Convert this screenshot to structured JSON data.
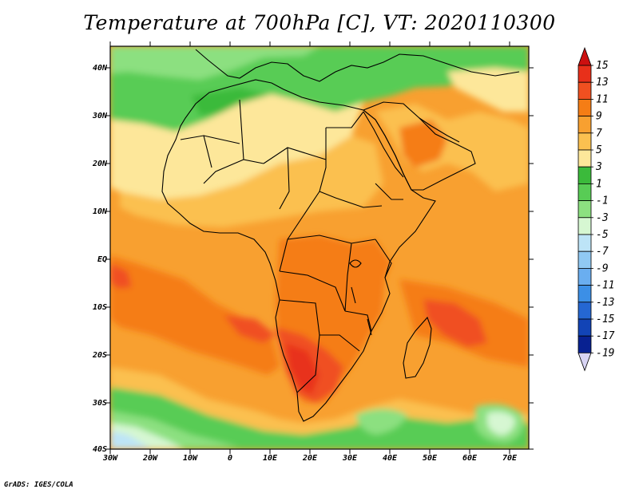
{
  "title": "Temperature at 700hPa [C], VT: 2020110300",
  "credit": "GrADS: IGES/COLA",
  "lat_labels": [
    "40N",
    "30N",
    "20N",
    "10N",
    "EQ",
    "10S",
    "20S",
    "30S",
    "40S"
  ],
  "lon_labels": [
    "30W",
    "20W",
    "10W",
    "0",
    "10E",
    "20E",
    "30E",
    "40E",
    "50E",
    "60E",
    "70E"
  ],
  "colorbar": {
    "labels": [
      "15",
      "13",
      "11",
      "9",
      "7",
      "5",
      "3",
      "1",
      "-1",
      "-3",
      "-5",
      "-7",
      "-9",
      "-11",
      "-13",
      "-15",
      "-17",
      "-19"
    ],
    "colors": [
      "#e8301a",
      "#f05020",
      "#f57d15",
      "#f8a030",
      "#fbc050",
      "#fde79a",
      "#3bba3b",
      "#58cc55",
      "#8ce080",
      "#d6f7d2",
      "#bde4f7",
      "#90c9f3",
      "#6aaef0",
      "#3c8fe6",
      "#2567d2",
      "#1244b6",
      "#082191"
    ],
    "top_arrow_color": "#cc1010",
    "bottom_arrow_color": "#d8d4f4"
  },
  "field_colors": {
    "ocean": "#f8a030",
    "warm": "#f57d15",
    "hot": "#f05020",
    "hottest": "#e8301a",
    "mild": "#fbc050",
    "cool": "#fde79a",
    "green": "#58cc55",
    "lightgreen": "#8ce080",
    "darkgreen": "#3bba3b",
    "cyan": "#d6f7d2",
    "lightblue": "#bde4f7",
    "blue": "#90c9f3"
  }
}
